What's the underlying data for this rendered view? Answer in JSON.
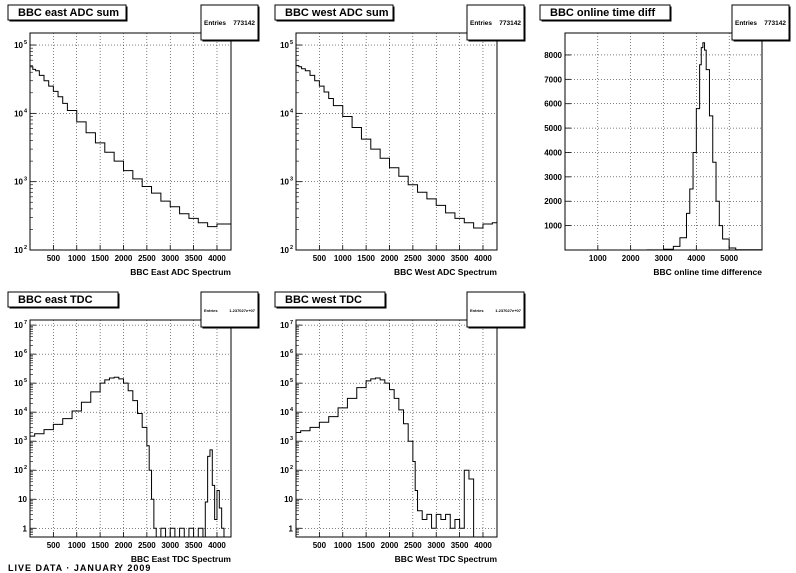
{
  "footer_text": "LIVE DATA · JANUARY 2009",
  "chart_data": [
    {
      "id": "east_adc",
      "type": "histogram",
      "title": "BBC east ADC sum",
      "xlabel": "BBC East ADC Spectrum",
      "ylabel": "",
      "stats": {
        "label": "Entries",
        "value": "773142"
      },
      "xlim": [
        0,
        4300
      ],
      "ylim": [
        100,
        150000
      ],
      "yscale": "log",
      "grid": true,
      "xticks": [
        500,
        1000,
        1500,
        2000,
        2500,
        3000,
        3500,
        4000
      ],
      "xtick_labels": [
        "500",
        "1000",
        "1500",
        "2000",
        "2500",
        "3000",
        "3500",
        "4000"
      ],
      "yticks": [
        100,
        1000,
        10000,
        100000
      ],
      "ytick_labels": [
        {
          "base": "10",
          "exp": "2"
        },
        {
          "base": "10",
          "exp": "3"
        },
        {
          "base": "10",
          "exp": "4"
        },
        {
          "base": "10",
          "exp": "5"
        }
      ],
      "x": [
        0,
        60,
        120,
        200,
        300,
        400,
        500,
        600,
        700,
        800,
        1000,
        1200,
        1400,
        1600,
        1800,
        2000,
        2200,
        2400,
        2600,
        2800,
        3000,
        3200,
        3400,
        3600,
        3800,
        4000,
        4200,
        4300
      ],
      "values": [
        48000,
        44000,
        42000,
        36000,
        30000,
        25000,
        21000,
        17500,
        14000,
        11000,
        7500,
        5200,
        3700,
        2700,
        2000,
        1450,
        1100,
        850,
        680,
        520,
        430,
        340,
        290,
        250,
        220,
        240,
        240,
        230
      ]
    },
    {
      "id": "west_adc",
      "type": "histogram",
      "title": "BBC west ADC sum",
      "xlabel": "BBC West ADC Spectrum",
      "ylabel": "",
      "stats": {
        "label": "Entries",
        "value": "773142"
      },
      "xlim": [
        0,
        4300
      ],
      "ylim": [
        100,
        150000
      ],
      "yscale": "log",
      "grid": true,
      "xticks": [
        500,
        1000,
        1500,
        2000,
        2500,
        3000,
        3500,
        4000
      ],
      "xtick_labels": [
        "500",
        "1000",
        "1500",
        "2000",
        "2500",
        "3000",
        "3500",
        "4000"
      ],
      "yticks": [
        100,
        1000,
        10000,
        100000
      ],
      "ytick_labels": [
        {
          "base": "10",
          "exp": "2"
        },
        {
          "base": "10",
          "exp": "3"
        },
        {
          "base": "10",
          "exp": "4"
        },
        {
          "base": "10",
          "exp": "5"
        }
      ],
      "x": [
        0,
        60,
        120,
        200,
        300,
        400,
        500,
        600,
        700,
        800,
        1000,
        1200,
        1400,
        1600,
        1800,
        2000,
        2200,
        2400,
        2600,
        2800,
        3000,
        3200,
        3400,
        3600,
        3800,
        4000,
        4200,
        4300
      ],
      "values": [
        50000,
        48000,
        45000,
        42000,
        36000,
        30000,
        25000,
        20500,
        16500,
        13000,
        9000,
        6200,
        4200,
        3000,
        2200,
        1600,
        1200,
        900,
        700,
        560,
        450,
        350,
        290,
        250,
        210,
        240,
        250,
        230
      ]
    },
    {
      "id": "time_diff",
      "type": "histogram",
      "title": "BBC online time diff",
      "xlabel": "BBC online time difference",
      "ylabel": "",
      "stats": {
        "label": "Entries",
        "value": "773142"
      },
      "xlim": [
        0,
        6000
      ],
      "ylim": [
        0,
        8900
      ],
      "yscale": "linear",
      "grid": true,
      "xticks": [
        1000,
        2000,
        3000,
        4000,
        5000
      ],
      "xtick_labels": [
        "1000",
        "2000",
        "3000",
        "4000",
        "5000"
      ],
      "yticks": [
        1000,
        2000,
        3000,
        4000,
        5000,
        6000,
        7000,
        8000
      ],
      "ytick_labels": [
        "1000",
        "2000",
        "3000",
        "4000",
        "5000",
        "6000",
        "7000",
        "8000"
      ],
      "x": [
        0,
        2500,
        3000,
        3300,
        3500,
        3700,
        3800,
        3900,
        4000,
        4100,
        4150,
        4200,
        4250,
        4300,
        4400,
        4500,
        4600,
        4700,
        4800,
        5000,
        5200,
        6000
      ],
      "values": [
        0,
        5,
        30,
        150,
        500,
        1500,
        2500,
        4000,
        5800,
        7600,
        8300,
        8500,
        8200,
        7400,
        5500,
        3600,
        2000,
        1000,
        450,
        80,
        10,
        0
      ]
    },
    {
      "id": "east_tdc",
      "type": "histogram",
      "title": "BBC east TDC",
      "xlabel": "BBC East TDC Spectrum",
      "ylabel": "",
      "stats": {
        "label": "Entries",
        "value": "1.237027e+07"
      },
      "xlim": [
        0,
        4300
      ],
      "ylim": [
        0.5,
        15000000
      ],
      "yscale": "log",
      "grid": true,
      "xticks": [
        500,
        1000,
        1500,
        2000,
        2500,
        3000,
        3500,
        4000
      ],
      "xtick_labels": [
        "500",
        "1000",
        "1500",
        "2000",
        "2500",
        "3000",
        "3500",
        "4000"
      ],
      "yticks": [
        1,
        10,
        100,
        1000,
        10000,
        100000,
        1000000,
        10000000
      ],
      "ytick_labels": [
        {
          "base": "1",
          "exp": ""
        },
        {
          "base": "10",
          "exp": ""
        },
        {
          "base": "10",
          "exp": "2"
        },
        {
          "base": "10",
          "exp": "3"
        },
        {
          "base": "10",
          "exp": "4"
        },
        {
          "base": "10",
          "exp": "5"
        },
        {
          "base": "10",
          "exp": "6"
        },
        {
          "base": "10",
          "exp": "7"
        }
      ],
      "x": [
        0,
        100,
        300,
        500,
        700,
        900,
        1100,
        1300,
        1500,
        1600,
        1700,
        1800,
        1900,
        2000,
        2100,
        2200,
        2300,
        2400,
        2500,
        2550,
        2600,
        2650,
        2700,
        2800,
        2900,
        3000,
        3100,
        3200,
        3300,
        3400,
        3500,
        3600,
        3700,
        3750,
        3800,
        3850,
        3900,
        3950,
        4000,
        4050,
        4100,
        4150
      ],
      "values": [
        1500,
        1800,
        2500,
        3800,
        6000,
        11000,
        22000,
        50000,
        100000,
        130000,
        150000,
        160000,
        140000,
        100000,
        55000,
        25000,
        9000,
        3000,
        700,
        100,
        10,
        1,
        0.5,
        1,
        0.5,
        1,
        0.5,
        1,
        0.5,
        1,
        0.5,
        1,
        0.5,
        8,
        300,
        500,
        30,
        2,
        20,
        5,
        1,
        0.5
      ]
    },
    {
      "id": "west_tdc",
      "type": "histogram",
      "title": "BBC west TDC",
      "xlabel": "BBC West TDC Spectrum",
      "ylabel": "",
      "stats": {
        "label": "Entries",
        "value": "1.237027e+07"
      },
      "xlim": [
        0,
        4300
      ],
      "ylim": [
        0.5,
        15000000
      ],
      "yscale": "log",
      "grid": true,
      "xticks": [
        500,
        1000,
        1500,
        2000,
        2500,
        3000,
        3500,
        4000
      ],
      "xtick_labels": [
        "500",
        "1000",
        "1500",
        "2000",
        "2500",
        "3000",
        "3500",
        "4000"
      ],
      "yticks": [
        1,
        10,
        100,
        1000,
        10000,
        100000,
        1000000,
        10000000
      ],
      "ytick_labels": [
        {
          "base": "1",
          "exp": ""
        },
        {
          "base": "10",
          "exp": ""
        },
        {
          "base": "10",
          "exp": "2"
        },
        {
          "base": "10",
          "exp": "3"
        },
        {
          "base": "10",
          "exp": "4"
        },
        {
          "base": "10",
          "exp": "5"
        },
        {
          "base": "10",
          "exp": "6"
        },
        {
          "base": "10",
          "exp": "7"
        }
      ],
      "x": [
        0,
        100,
        300,
        500,
        700,
        900,
        1100,
        1300,
        1500,
        1600,
        1700,
        1800,
        1900,
        2000,
        2100,
        2200,
        2300,
        2400,
        2500,
        2550,
        2600,
        2700,
        2800,
        2900,
        3000,
        3100,
        3200,
        3300,
        3400,
        3500,
        3600,
        3700,
        3800,
        3900,
        4000
      ],
      "values": [
        2000,
        2300,
        3000,
        4500,
        7000,
        14000,
        30000,
        70000,
        120000,
        140000,
        150000,
        130000,
        100000,
        60000,
        30000,
        12000,
        4000,
        1000,
        200,
        20,
        4,
        2,
        3,
        1,
        3,
        2,
        3,
        1,
        2,
        1,
        100,
        50,
        0.5,
        0.5,
        0.5
      ]
    }
  ]
}
